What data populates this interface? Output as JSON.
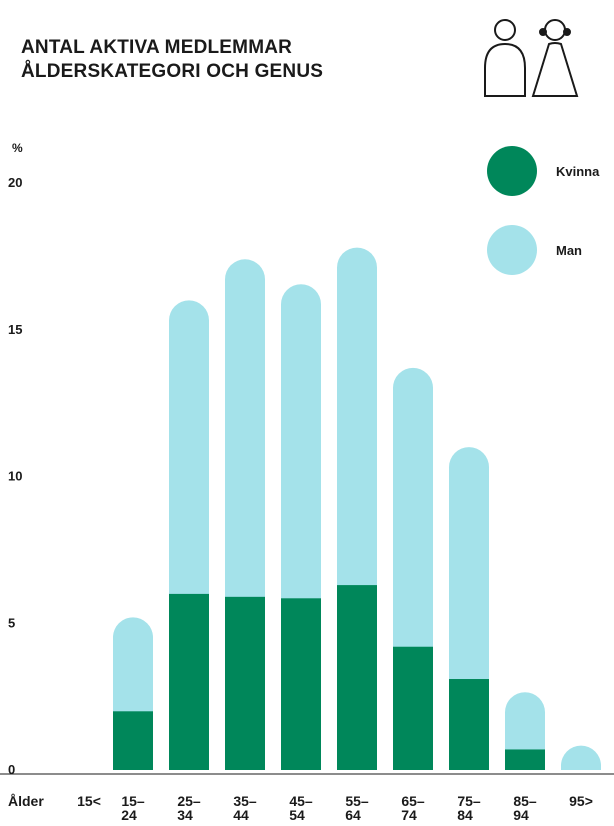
{
  "title_line1": "ANTAL AKTIVA MEDLEMMAR",
  "title_line2": "ÅLDERSKATEGORI OCH GENUS",
  "icon": "people-icon",
  "colors": {
    "kvinna": "#00875a",
    "man": "#a4e2ea",
    "axis": "#1a1a1a"
  },
  "chart_data": {
    "type": "bar",
    "stacked": true,
    "title": "ANTAL AKTIVA MEDLEMMAR ÅLDERSKATEGORI OCH GENUS",
    "ylabel": "%",
    "xlabel": "Ålder",
    "ylim": [
      0,
      20
    ],
    "yticks": [
      "0",
      "5",
      "10",
      "15",
      "20"
    ],
    "categories": [
      [
        "15<"
      ],
      [
        "15–",
        "24"
      ],
      [
        "25–",
        "34"
      ],
      [
        "35–",
        "44"
      ],
      [
        "45–",
        "54"
      ],
      [
        "55–",
        "64"
      ],
      [
        "65–",
        "74"
      ],
      [
        "75–",
        "84"
      ],
      [
        "85–",
        "94"
      ],
      [
        "95>"
      ]
    ],
    "series": [
      {
        "name": "Kvinna",
        "values": [
          0,
          2.0,
          6.0,
          5.9,
          5.85,
          6.3,
          4.2,
          3.1,
          0.7,
          0
        ]
      },
      {
        "name": "Man",
        "values": [
          0,
          3.2,
          10.0,
          11.5,
          10.7,
          11.5,
          9.5,
          7.9,
          1.95,
          0.3
        ]
      }
    ],
    "legend_position": "top-right",
    "grid": false
  }
}
